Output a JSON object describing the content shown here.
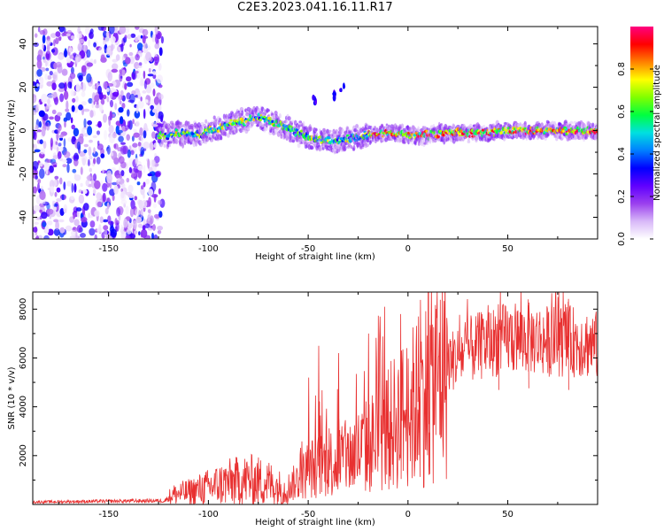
{
  "figure": {
    "title": "C2E3.2023.041.16.11.R17"
  },
  "chart_data": [
    {
      "type": "heatmap",
      "title": "",
      "xlabel": "Height of straight line (km)",
      "ylabel": "Frequency (Hz)",
      "xlim": [
        -188,
        95
      ],
      "ylim": [
        -50,
        48
      ],
      "xticks": [
        -150,
        -100,
        -50,
        0,
        50
      ],
      "yticks": [
        -40,
        -20,
        0,
        20,
        40
      ],
      "colorbar": {
        "label": "Normalized spectral amplitude",
        "range": [
          0,
          1
        ],
        "ticks": [
          0.0,
          0.2,
          0.4,
          0.6,
          0.8
        ],
        "colors": [
          "#ffffff",
          "#d8b8f8",
          "#9b40ee",
          "#6000ff",
          "#0000ff",
          "#0080ff",
          "#00e0e0",
          "#00ff40",
          "#80ff00",
          "#ffff00",
          "#ff8000",
          "#ff0000",
          "#ff0080"
        ]
      },
      "noise_region_x": [
        -188,
        -125
      ],
      "signal_trace": {
        "x": [
          -125,
          -115,
          -105,
          -95,
          -85,
          -75,
          -65,
          -58,
          -50,
          -40,
          -30,
          -20,
          -10,
          0,
          10,
          20,
          30,
          40,
          50,
          60,
          70,
          80,
          90,
          95
        ],
        "frequency": [
          -3,
          -1,
          -2,
          1,
          4,
          6,
          3,
          0,
          -3,
          -5,
          -4,
          -2,
          -1,
          -2,
          -2,
          -1,
          -1,
          -1,
          0,
          0,
          0,
          0,
          0,
          0
        ]
      },
      "side_echoes": [
        {
          "x": -47,
          "frequency": 14
        },
        {
          "x": -36,
          "frequency": 16
        },
        {
          "x": -33,
          "frequency": 20
        }
      ]
    },
    {
      "type": "line",
      "title": "",
      "xlabel": "Height of straight line (km)",
      "ylabel": "SNR (10 * v/v)",
      "xlim": [
        -188,
        95
      ],
      "ylim": [
        0,
        8700
      ],
      "xticks": [
        -150,
        -100,
        -50,
        0,
        50
      ],
      "yticks": [
        2000,
        4000,
        6000,
        8000
      ],
      "series": [
        {
          "name": "SNR",
          "color": "#e83030",
          "baseline_x": [
            -188,
            -130,
            -122,
            -118,
            -110,
            -100,
            -90,
            -80,
            -70,
            -62,
            -55,
            -48,
            -40,
            -30,
            -20,
            -12,
            -5,
            0,
            5,
            10,
            15,
            20,
            30,
            40,
            50,
            60,
            70,
            80,
            90,
            95
          ],
          "baseline_y": [
            100,
            150,
            150,
            400,
            500,
            700,
            900,
            1000,
            900,
            600,
            1000,
            1500,
            1700,
            1900,
            2400,
            2900,
            3500,
            3800,
            4200,
            4700,
            5300,
            5800,
            6300,
            6600,
            6800,
            6800,
            6700,
            6700,
            6600,
            6500
          ],
          "spikes": [
            {
              "x": -50,
              "y": 5200
            },
            {
              "x": -45,
              "y": 6500
            },
            {
              "x": -35,
              "y": 6200
            },
            {
              "x": -20,
              "y": 7000
            },
            {
              "x": -12,
              "y": 8100
            },
            {
              "x": 5,
              "y": 7700
            },
            {
              "x": 10,
              "y": 8300
            },
            {
              "x": 45,
              "y": 8200
            },
            {
              "x": 60,
              "y": 8400
            },
            {
              "x": 80,
              "y": 8300
            }
          ]
        }
      ]
    }
  ]
}
